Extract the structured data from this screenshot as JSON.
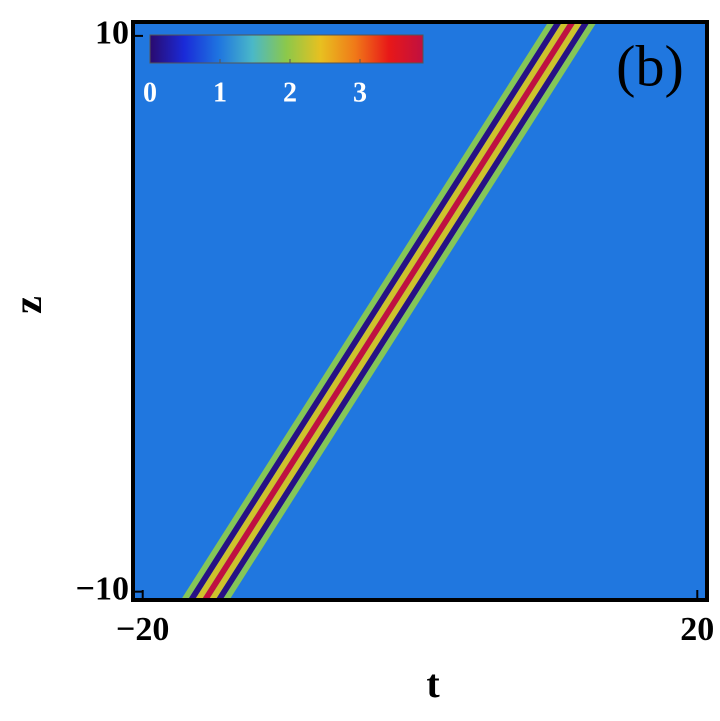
{
  "chart_data": {
    "type": "density",
    "xlabel": "t",
    "ylabel": "z",
    "annotation": "(b)",
    "xlim": [
      -20.7,
      20.7
    ],
    "ylim": [
      -10.3,
      10.5
    ],
    "xticks": [
      {
        "value": -20,
        "label": "−20"
      },
      20
    ],
    "yticks": [
      {
        "value": -10,
        "label": "−10"
      },
      10
    ],
    "background": 1,
    "center_line": {
      "z": [
        -10.3,
        10.5
      ],
      "t": [
        -15.5,
        11.0
      ]
    },
    "profile": {
      "offset": [
        -1.5,
        -1,
        -0.5,
        0,
        0.5,
        1,
        1.5
      ],
      "values": [
        1.9,
        0.1,
        2.3,
        3.9,
        2.3,
        0.1,
        1.9
      ]
    },
    "zlim": [
      0,
      3.9
    ],
    "zticks": [
      0,
      1,
      2,
      3
    ],
    "colormap": [
      "#2a0a6e",
      "#1a2ad8",
      "#1e74e0",
      "#4ab8c8",
      "#8cc84a",
      "#e8c020",
      "#f07a18",
      "#e81818",
      "#c01040"
    ]
  }
}
